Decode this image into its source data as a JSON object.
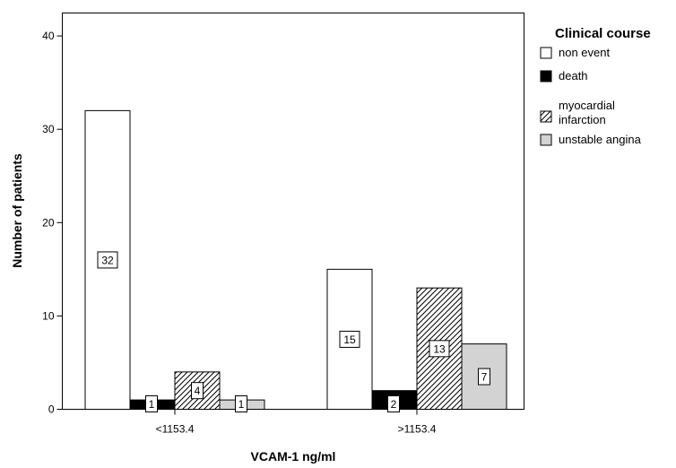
{
  "chart_data": {
    "type": "bar",
    "categories": [
      "<1153.4",
      ">1153.4"
    ],
    "series": [
      {
        "name": "non event",
        "values": [
          32,
          15
        ],
        "fill": "#ffffff",
        "pattern": "none"
      },
      {
        "name": "death",
        "values": [
          1,
          2
        ],
        "fill": "#000000",
        "pattern": "none"
      },
      {
        "name": "myocardial infarction",
        "values": [
          4,
          13
        ],
        "fill": "#ffffff",
        "pattern": "hatch"
      },
      {
        "name": "unstable angina",
        "values": [
          1,
          7
        ],
        "fill": "#d3d3d3",
        "pattern": "none"
      }
    ],
    "data_labels": [
      [
        "32",
        "15"
      ],
      [
        "1",
        "2"
      ],
      [
        "4",
        "13"
      ],
      [
        "1",
        "7"
      ]
    ],
    "xlabel": "VCAM-1 ng/ml",
    "ylabel": "Number of patients",
    "ylim": [
      0,
      42
    ],
    "yticks": [
      0,
      10,
      20,
      30,
      40
    ],
    "ytick_labels": [
      "0",
      "10",
      "20",
      "30",
      "40"
    ],
    "grid": false,
    "legend": {
      "title": "Clinical course",
      "position": "right",
      "entries": [
        {
          "label_lines": [
            "non event"
          ]
        },
        {
          "label_lines": [
            "death"
          ]
        },
        {
          "label_lines": [
            "myocardial",
            "infarction"
          ]
        },
        {
          "label_lines": [
            "unstable angina"
          ]
        }
      ]
    }
  }
}
